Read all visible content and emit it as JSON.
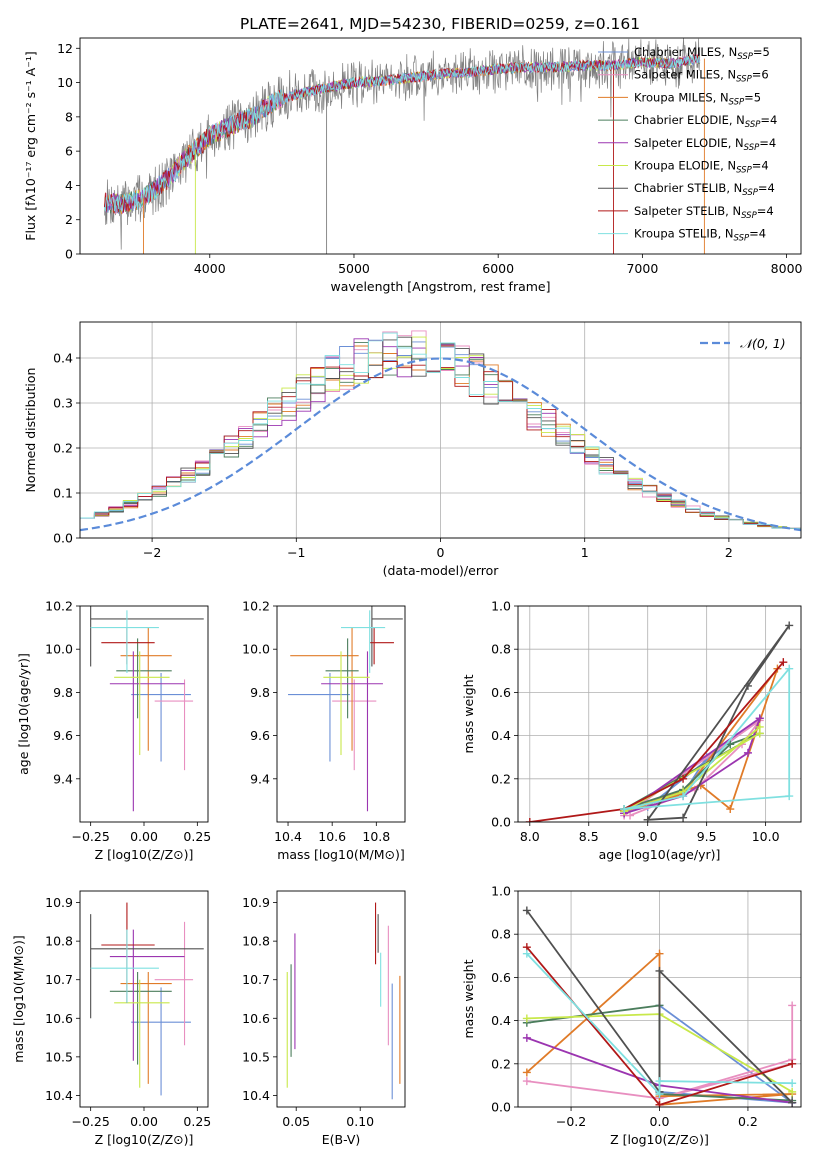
{
  "figure_title": "PLATE=2641, MJD=54230, FIBERID=0259, z=0.161",
  "models": [
    {
      "name": "Chabrier MILES, N_SSP=5",
      "base": "Chabrier MILES, N",
      "sub": "SSP",
      "tail": "=5",
      "color": "#6b8fd6"
    },
    {
      "name": "Salpeter MILES, N_SSP=6",
      "base": "Salpeter MILES, N",
      "sub": "SSP",
      "tail": "=6",
      "color": "#e88fc0"
    },
    {
      "name": "Kroupa MILES, N_SSP=5",
      "base": "Kroupa MILES, N",
      "sub": "SSP",
      "tail": "=5",
      "color": "#e07b28"
    },
    {
      "name": "Chabrier ELODIE, N_SSP=4",
      "base": "Chabrier ELODIE, N",
      "sub": "SSP",
      "tail": "=4",
      "color": "#4b7d5c"
    },
    {
      "name": "Salpeter ELODIE, N_SSP=4",
      "base": "Salpeter ELODIE, N",
      "sub": "SSP",
      "tail": "=4",
      "color": "#9b35b0"
    },
    {
      "name": "Kroupa ELODIE, N_SSP=4",
      "base": "Kroupa ELODIE, N",
      "sub": "SSP",
      "tail": "=4",
      "color": "#c8e84a"
    },
    {
      "name": "Chabrier STELIB, N_SSP=4",
      "base": "Chabrier STELIB, N",
      "sub": "SSP",
      "tail": "=4",
      "color": "#505050"
    },
    {
      "name": "Salpeter STELIB, N_SSP=4",
      "base": "Salpeter STELIB, N",
      "sub": "SSP",
      "tail": "=4",
      "color": "#b01818"
    },
    {
      "name": "Kroupa STELIB, N_SSP=4",
      "base": "Kroupa STELIB, N",
      "sub": "SSP",
      "tail": "=4",
      "color": "#7fe0e0"
    }
  ],
  "chart_data": [
    {
      "id": "spectrum",
      "type": "line",
      "xlabel": "wavelength [Angstrom, rest frame]",
      "ylabel": "Flux [fλ10⁻¹⁷ erg cm⁻² s⁻¹ A⁻¹]",
      "xlim": [
        3100,
        8100
      ],
      "ylim": [
        0,
        12.6
      ],
      "xticks": [
        4000,
        5000,
        6000,
        7000,
        8000
      ],
      "yticks": [
        0,
        2,
        4,
        6,
        8,
        10,
        12
      ],
      "grid": false,
      "legend": "right",
      "continuum": {
        "x": [
          3270,
          3400,
          3550,
          3700,
          3850,
          4000,
          4150,
          4300,
          4450,
          4600,
          4800,
          5000,
          5200,
          5400,
          5600,
          5800,
          6000,
          6200,
          6400,
          6600,
          6800,
          7000,
          7200,
          7400
        ],
        "y": [
          3.0,
          2.9,
          3.3,
          4.3,
          5.7,
          6.9,
          7.5,
          8.0,
          8.9,
          9.3,
          9.7,
          10.0,
          10.1,
          10.3,
          10.5,
          10.6,
          10.8,
          10.9,
          10.9,
          11.0,
          11.0,
          11.2,
          11.1,
          11.4
        ]
      },
      "noise_amplitude": [
        0.5,
        0.9
      ]
    },
    {
      "id": "residuals",
      "type": "step",
      "xlabel": "(data-model)/error",
      "ylabel": "Normed distribution",
      "xlim": [
        -2.5,
        2.5
      ],
      "ylim": [
        0,
        0.48
      ],
      "xticks": [
        -2,
        -1,
        0,
        1,
        2
      ],
      "xtick_labels": [
        "−2",
        "−1",
        "0",
        "1",
        "2"
      ],
      "yticks": [
        0.0,
        0.1,
        0.2,
        0.3,
        0.4
      ],
      "bin_width": 0.1,
      "grid": true,
      "reference": {
        "name": "𝒩(0, 1)",
        "color": "#5b8bd9"
      },
      "legend": "top-right"
    },
    {
      "id": "age_vs_Z",
      "type": "errorbar",
      "xlabel": "Z [log10(Z/Z⊙)]",
      "ylabel": "age [log10(age/yr)]",
      "xlim": [
        -0.3,
        0.3
      ],
      "ylim": [
        9.2,
        10.2
      ],
      "xticks": [
        -0.25,
        0.0,
        0.25
      ],
      "yticks": [
        9.4,
        9.6,
        9.8,
        10.0,
        10.2
      ],
      "grid": false,
      "points": [
        {
          "x": 0.08,
          "xerr": [
            0.14,
            0.14
          ],
          "y": 9.79,
          "yerr": [
            0.31,
            0.1
          ]
        },
        {
          "x": 0.19,
          "xerr": [
            0.14,
            0.04
          ],
          "y": 9.76,
          "yerr": [
            0.32,
            0.1
          ]
        },
        {
          "x": 0.02,
          "xerr": [
            0.13,
            0.11
          ],
          "y": 9.97,
          "yerr": [
            0.44,
            0.13
          ]
        },
        {
          "x": -0.03,
          "xerr": [
            0.1,
            0.16
          ],
          "y": 9.9,
          "yerr": [
            0.22,
            0.15
          ]
        },
        {
          "x": -0.05,
          "xerr": [
            0.11,
            0.24
          ],
          "y": 9.84,
          "yerr": [
            0.59,
            0.15
          ]
        },
        {
          "x": -0.02,
          "xerr": [
            0.12,
            0.14
          ],
          "y": 9.87,
          "yerr": [
            0.36,
            0.12
          ]
        },
        {
          "x": -0.25,
          "xerr": [
            0.0,
            0.53
          ],
          "y": 10.14,
          "yerr": [
            0.22,
            0.06
          ]
        },
        {
          "x": -0.08,
          "xerr": [
            0.12,
            0.13
          ],
          "y": 10.03,
          "yerr": [
            0.1,
            0.07
          ]
        },
        {
          "x": -0.08,
          "xerr": [
            0.17,
            0.15
          ],
          "y": 10.1,
          "yerr": [
            0.21,
            0.08
          ]
        }
      ]
    },
    {
      "id": "age_vs_mass",
      "type": "errorbar",
      "xlabel": "mass [log10(M/M⊙)]",
      "ylabel": "",
      "xlim": [
        10.35,
        10.93
      ],
      "ylim": [
        9.2,
        10.2
      ],
      "xticks": [
        10.4,
        10.6,
        10.8
      ],
      "yticks": [
        9.4,
        9.6,
        9.8,
        10.0,
        10.2
      ],
      "grid": false,
      "points": [
        {
          "x": 10.59,
          "xerr": [
            0.19,
            0.09
          ],
          "y": 9.79,
          "yerr": [
            0.31,
            0.1
          ]
        },
        {
          "x": 10.7,
          "xerr": [
            0.1,
            0.1
          ],
          "y": 9.76,
          "yerr": [
            0.32,
            0.1
          ]
        },
        {
          "x": 10.69,
          "xerr": [
            0.28,
            0.03
          ],
          "y": 9.97,
          "yerr": [
            0.44,
            0.13
          ]
        },
        {
          "x": 10.67,
          "xerr": [
            0.1,
            0.05
          ],
          "y": 9.9,
          "yerr": [
            0.22,
            0.15
          ]
        },
        {
          "x": 10.76,
          "xerr": [
            0.21,
            0.07
          ],
          "y": 9.84,
          "yerr": [
            0.59,
            0.15
          ]
        },
        {
          "x": 10.64,
          "xerr": [
            0.08,
            0.13
          ],
          "y": 9.87,
          "yerr": [
            0.36,
            0.12
          ]
        },
        {
          "x": 10.78,
          "xerr": [
            0.0,
            0.14
          ],
          "y": 10.14,
          "yerr": [
            0.22,
            0.06
          ]
        },
        {
          "x": 10.79,
          "xerr": [
            0.02,
            0.09
          ],
          "y": 10.03,
          "yerr": [
            0.1,
            0.07
          ]
        },
        {
          "x": 10.77,
          "xerr": [
            0.13,
            0.07
          ],
          "y": 10.1,
          "yerr": [
            0.21,
            0.08
          ]
        }
      ]
    },
    {
      "id": "massweight_vs_age",
      "type": "line",
      "xlabel": "age [log10(age/yr)]",
      "ylabel": "mass weight",
      "xlim": [
        7.9,
        10.3
      ],
      "ylim": [
        0,
        1.0
      ],
      "xticks": [
        8.0,
        8.5,
        9.0,
        9.5,
        10.0
      ],
      "yticks": [
        0.0,
        0.2,
        0.4,
        0.6,
        0.8,
        1.0
      ],
      "grid": true,
      "series": [
        {
          "x": [
            8.8,
            9.3,
            9.5,
            9.95,
            9.0,
            8.8
          ],
          "y": [
            0.05,
            0.13,
            0.3,
            0.48,
            0.07,
            0.05
          ]
        },
        {
          "x": [
            8.85,
            9.4,
            9.8,
            9.95,
            8.8
          ],
          "y": [
            0.03,
            0.15,
            0.36,
            0.47,
            0.03
          ]
        },
        {
          "x": [
            8.8,
            9.45,
            9.7,
            10.1,
            9.3,
            8.8
          ],
          "y": [
            0.05,
            0.17,
            0.06,
            0.71,
            0.13,
            0.05
          ]
        },
        {
          "x": [
            8.8,
            9.3,
            9.7,
            9.95,
            8.8
          ],
          "y": [
            0.06,
            0.15,
            0.36,
            0.41,
            0.06
          ]
        },
        {
          "x": [
            8.8,
            9.3,
            9.85,
            9.95,
            8.8
          ],
          "y": [
            0.04,
            0.12,
            0.32,
            0.48,
            0.04
          ]
        },
        {
          "x": [
            8.8,
            9.3,
            9.95,
            9.95,
            8.8
          ],
          "y": [
            0.05,
            0.14,
            0.44,
            0.41,
            0.05
          ]
        },
        {
          "x": [
            9.0,
            9.3,
            9.85,
            10.2,
            9.0
          ],
          "y": [
            0.01,
            0.02,
            0.63,
            0.91,
            0.01
          ]
        },
        {
          "x": [
            8.0,
            8.8,
            9.3,
            10.15
          ],
          "y": [
            0.0,
            0.06,
            0.2,
            0.74
          ]
        },
        {
          "x": [
            8.8,
            9.3,
            10.2,
            10.2,
            8.8
          ],
          "y": [
            0.06,
            0.12,
            0.71,
            0.12,
            0.06
          ]
        }
      ]
    },
    {
      "id": "mass_vs_Z",
      "type": "errorbar",
      "xlabel": "Z [log10(Z/Z⊙)]",
      "ylabel": "mass [log10(M/M⊙)]",
      "xlim": [
        -0.3,
        0.3
      ],
      "ylim": [
        10.37,
        10.93
      ],
      "xticks": [
        -0.25,
        0.0,
        0.25
      ],
      "yticks": [
        10.4,
        10.5,
        10.6,
        10.7,
        10.8,
        10.9
      ],
      "grid": false,
      "points": [
        {
          "x": 0.08,
          "xerr": [
            0.14,
            0.14
          ],
          "y": 10.59,
          "yerr": [
            0.19,
            0.09
          ]
        },
        {
          "x": 0.19,
          "xerr": [
            0.14,
            0.04
          ],
          "y": 10.7,
          "yerr": [
            0.17,
            0.15
          ]
        },
        {
          "x": 0.02,
          "xerr": [
            0.13,
            0.11
          ],
          "y": 10.69,
          "yerr": [
            0.26,
            0.03
          ]
        },
        {
          "x": -0.03,
          "xerr": [
            0.13,
            0.16
          ],
          "y": 10.67,
          "yerr": [
            0.19,
            0.05
          ]
        },
        {
          "x": -0.05,
          "xerr": [
            0.11,
            0.24
          ],
          "y": 10.76,
          "yerr": [
            0.27,
            0.07
          ]
        },
        {
          "x": -0.02,
          "xerr": [
            0.12,
            0.14
          ],
          "y": 10.64,
          "yerr": [
            0.22,
            0.06
          ]
        },
        {
          "x": -0.25,
          "xerr": [
            0.0,
            0.53
          ],
          "y": 10.78,
          "yerr": [
            0.18,
            0.09
          ]
        },
        {
          "x": -0.08,
          "xerr": [
            0.12,
            0.13
          ],
          "y": 10.79,
          "yerr": [
            0.15,
            0.11
          ]
        },
        {
          "x": -0.08,
          "xerr": [
            0.17,
            0.15
          ],
          "y": 10.73,
          "yerr": [
            0.09,
            0.1
          ]
        }
      ]
    },
    {
      "id": "mass_vs_ebv",
      "type": "errorbar",
      "xlabel": "E(B-V)",
      "ylabel": "",
      "xlim": [
        0.035,
        0.135
      ],
      "ylim": [
        10.37,
        10.93
      ],
      "xticks": [
        0.05,
        0.1
      ],
      "yticks": [
        10.4,
        10.5,
        10.6,
        10.7,
        10.8,
        10.9
      ],
      "xtick_labels": [
        "0.05",
        "0.10"
      ],
      "grid": false,
      "points": [
        {
          "x": 0.125,
          "y": 10.59,
          "yerr": [
            0.2,
            0.1
          ]
        },
        {
          "x": 0.122,
          "y": 10.7,
          "yerr": [
            0.17,
            0.14
          ]
        },
        {
          "x": 0.131,
          "y": 10.57,
          "yerr": [
            0.14,
            0.14
          ]
        },
        {
          "x": 0.046,
          "y": 10.62,
          "yerr": [
            0.12,
            0.12
          ]
        },
        {
          "x": 0.049,
          "y": 10.67,
          "yerr": [
            0.15,
            0.15
          ]
        },
        {
          "x": 0.043,
          "y": 10.57,
          "yerr": [
            0.15,
            0.15
          ]
        },
        {
          "x": 0.114,
          "y": 10.82,
          "yerr": [
            0.05,
            0.05
          ]
        },
        {
          "x": 0.112,
          "y": 10.82,
          "yerr": [
            0.08,
            0.08
          ]
        },
        {
          "x": 0.116,
          "y": 10.7,
          "yerr": [
            0.07,
            0.07
          ]
        }
      ]
    },
    {
      "id": "massweight_vs_Z",
      "type": "line",
      "xlabel": "Z [log10(Z/Z⊙)]",
      "ylabel": "mass weight",
      "xlim": [
        -0.32,
        0.32
      ],
      "ylim": [
        0,
        1.0
      ],
      "xticks": [
        -0.2,
        0.0,
        0.2
      ],
      "yticks": [
        0.0,
        0.2,
        0.4,
        0.6,
        0.8,
        1.0
      ],
      "xtick_labels": [
        "−0.2",
        "0.0",
        "0.2"
      ],
      "grid": true,
      "series": [
        {
          "x": [
            0.0,
            0.0,
            0.3,
            0.0
          ],
          "y": [
            0.07,
            0.47,
            0.02,
            0.07
          ]
        },
        {
          "x": [
            -0.3,
            0.0,
            0.3,
            0.3,
            0.3,
            0.0
          ],
          "y": [
            0.12,
            0.04,
            0.2,
            0.47,
            0.22,
            0.04
          ]
        },
        {
          "x": [
            -0.3,
            0.0,
            0.0,
            0.3,
            0.0
          ],
          "y": [
            0.16,
            0.71,
            0.05,
            0.06,
            0.01
          ]
        },
        {
          "x": [
            -0.3,
            0.0,
            0.0,
            0.3
          ],
          "y": [
            0.39,
            0.47,
            0.06,
            0.03
          ]
        },
        {
          "x": [
            -0.3,
            0.0,
            0.3
          ],
          "y": [
            0.32,
            0.1,
            0.02
          ]
        },
        {
          "x": [
            -0.3,
            0.0,
            0.3
          ],
          "y": [
            0.41,
            0.43,
            0.07
          ]
        },
        {
          "x": [
            -0.3,
            0.0,
            0.0,
            0.3
          ],
          "y": [
            0.91,
            0.07,
            0.63,
            0.02
          ]
        },
        {
          "x": [
            -0.3,
            0.0,
            0.3
          ],
          "y": [
            0.74,
            0.01,
            0.2
          ]
        },
        {
          "x": [
            -0.3,
            0.0,
            0.0,
            0.3
          ],
          "y": [
            0.71,
            0.06,
            0.12,
            0.11
          ]
        }
      ]
    }
  ]
}
